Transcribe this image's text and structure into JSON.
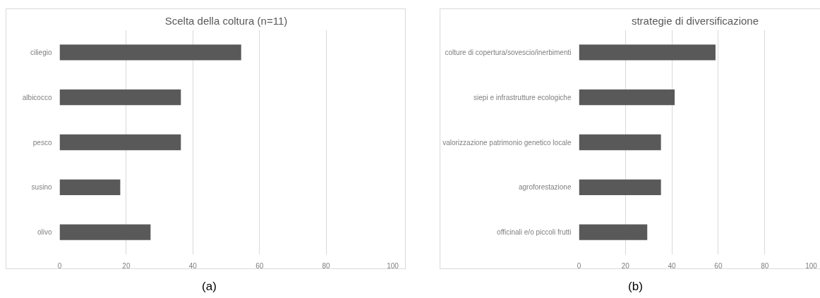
{
  "chart_data": [
    {
      "type": "bar",
      "orientation": "horizontal",
      "title": "Scelta della coltura (n=11)",
      "categories": [
        "ciliegio",
        "albicocco",
        "pesco",
        "susino",
        "olivo"
      ],
      "values": [
        54.5,
        36.4,
        36.4,
        18.2,
        27.3
      ],
      "color": "#595959",
      "xlim": [
        0,
        100
      ],
      "xticks": [
        0,
        20,
        40,
        60,
        80,
        100
      ],
      "grid": "x",
      "annotations": [
        "(a)"
      ]
    },
    {
      "type": "bar",
      "orientation": "horizontal",
      "title": "strategie di diversificazione",
      "categories": [
        "colture di copertura/sovescio/inerbimenti",
        "siepi e infrastrutture ecologiche",
        "valorizzazione patrimonio genetico locale",
        "agroforestazione",
        "officinali e/o piccoli frutti"
      ],
      "values": [
        58.8,
        41.2,
        35.3,
        35.3,
        29.4
      ],
      "color": "#595959",
      "xlim": [
        0,
        100
      ],
      "xticks": [
        0,
        20,
        40,
        60,
        80,
        100
      ],
      "grid": "x",
      "annotations": [
        "(b)"
      ]
    }
  ]
}
